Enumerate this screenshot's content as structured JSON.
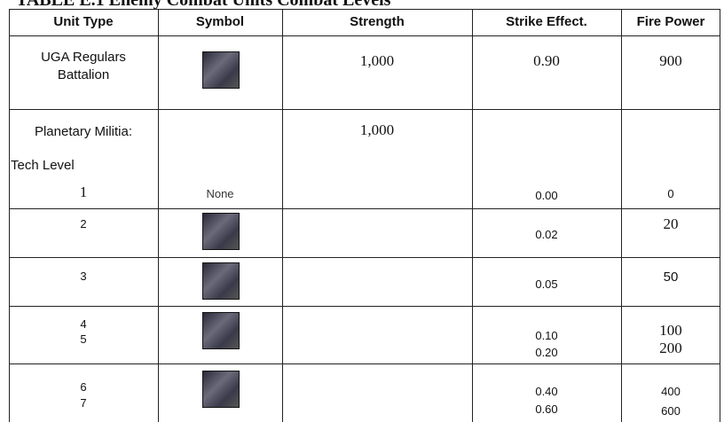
{
  "header": {
    "title": "TABLE E.1 Enemy Combat Units Combat Levels"
  },
  "table": {
    "columns": [
      "Unit Type",
      "Symbol",
      "Strength",
      "Strike Effect.",
      "Fire Power"
    ],
    "rows": [
      {
        "unit": [
          "UGA Regulars",
          "Battalion"
        ],
        "strength": "1,000",
        "strike": [
          "0.90"
        ],
        "fire": [
          "900"
        ]
      },
      {
        "unit": [
          "Planetary Militia:",
          "Tech Level",
          "1"
        ],
        "symbol": "None",
        "strength": "1,000",
        "strike": [
          "0.00"
        ],
        "fire": [
          "0"
        ]
      },
      {
        "unit": [
          "2"
        ],
        "strike": [
          "0.02"
        ],
        "fire": [
          "20"
        ]
      },
      {
        "unit": [
          "3"
        ],
        "strike": [
          "0.05"
        ],
        "fire": [
          "50"
        ]
      },
      {
        "unit": [
          "4",
          "5"
        ],
        "strike": [
          "0.10",
          "0.20"
        ],
        "fire": [
          "100",
          "200"
        ]
      },
      {
        "unit": [
          "6",
          "7"
        ],
        "strike": [
          "0.40",
          "0.60"
        ],
        "fire": [
          "400",
          "600"
        ]
      }
    ]
  }
}
